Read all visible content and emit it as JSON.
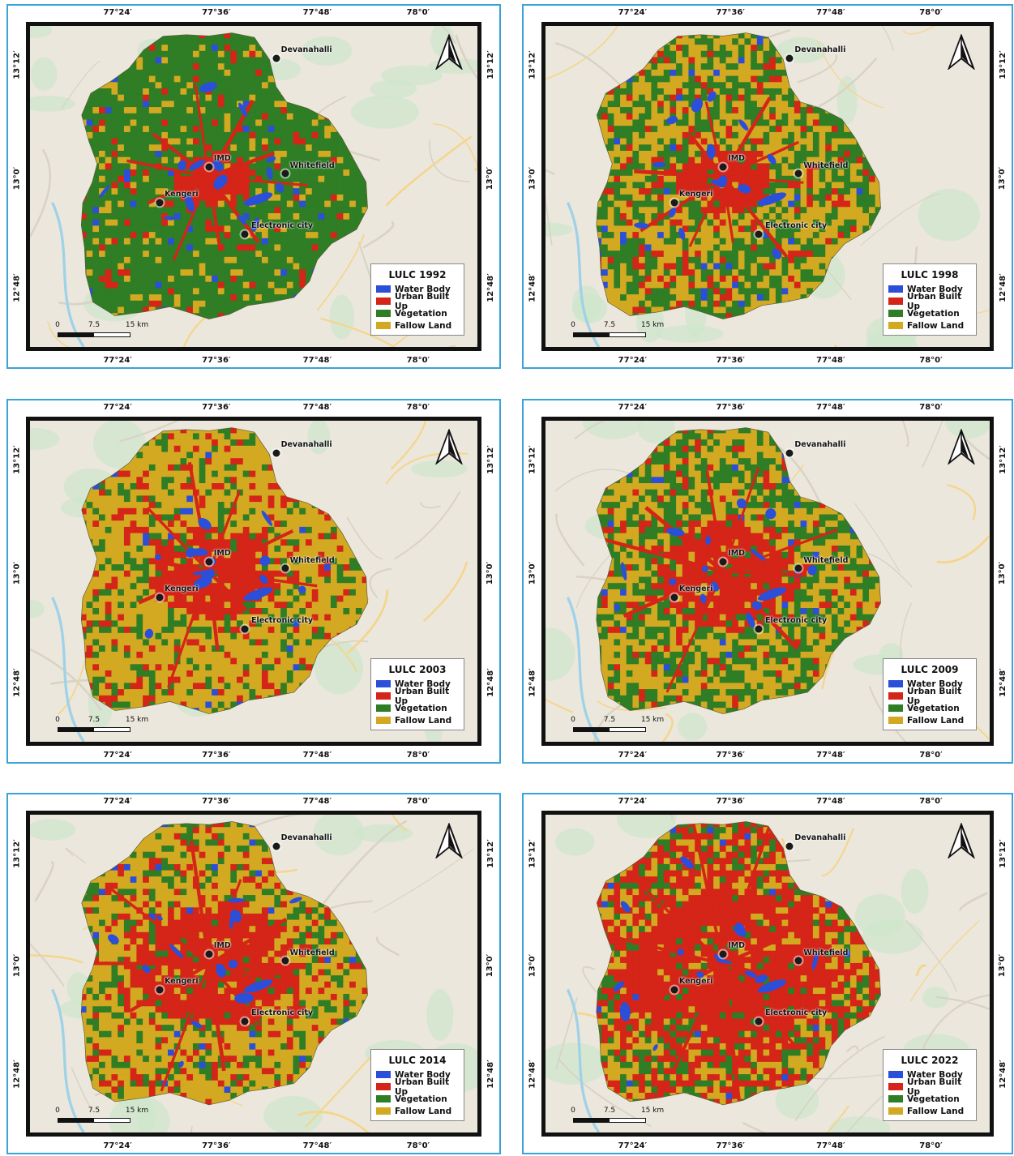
{
  "lon_ticks": [
    "77°24′",
    "77°36′",
    "77°48′",
    "78°0′"
  ],
  "lat_ticks": [
    "13°12′",
    "13°0′",
    "12°48′"
  ],
  "places": [
    {
      "name": "Devanahalli"
    },
    {
      "name": "IMD"
    },
    {
      "name": "Whitefield"
    },
    {
      "name": "Kengeri"
    },
    {
      "name": "Electronic city"
    }
  ],
  "legend_classes": [
    {
      "label": "Water Body",
      "color": "#2b4fd8"
    },
    {
      "label": "Urban Built Up",
      "color": "#d42518"
    },
    {
      "label": "Vegetation",
      "color": "#2f7d24"
    },
    {
      "label": "Fallow Land",
      "color": "#d2a921"
    }
  ],
  "scale": {
    "labels": [
      "0",
      "7.5",
      "15 km"
    ]
  },
  "map_background": "#ebe7dc",
  "maps": [
    {
      "title": "LULC 1992",
      "dominant": "vegetation",
      "urban_extent": "compact core"
    },
    {
      "title": "LULC 1998",
      "dominant": "fallow-vegetation mix",
      "urban_extent": "expanding core"
    },
    {
      "title": "LULC 2003",
      "dominant": "fallow land",
      "urban_extent": "spreading"
    },
    {
      "title": "LULC 2009",
      "dominant": "fallow-vegetation mix",
      "urban_extent": "radial spread"
    },
    {
      "title": "LULC 2014",
      "dominant": "fallow land",
      "urban_extent": "large"
    },
    {
      "title": "LULC 2022",
      "dominant": "urban",
      "urban_extent": "very large"
    }
  ]
}
